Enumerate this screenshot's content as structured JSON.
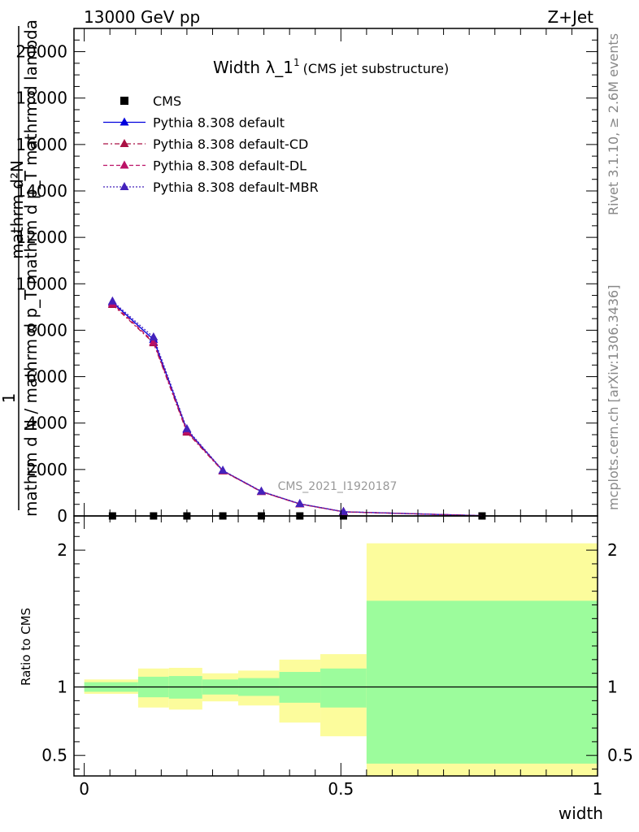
{
  "header": {
    "left": "13000 GeV pp",
    "right": "Z+Jet"
  },
  "side_texts": {
    "rivet": "Rivet 3.1.10, ≥ 2.6M events",
    "mcplots": "mcplots.cern.ch [arXiv:1306.3436]"
  },
  "watermark": "CMS_2021_I1920187",
  "colors": {
    "cms": "#000000",
    "default": "#0000dd",
    "cd": "#aa1144",
    "dl": "#bb1166",
    "mbr": "#4422bb",
    "band_inner": "#9cfc9c",
    "band_outer": "#fcfc9c"
  },
  "chart_data": [
    {
      "type": "line",
      "title": "Width λ_1",
      "title_sup": "1",
      "subtitle": "(CMS jet substructure)",
      "ylabel_top": "mathrm d²N",
      "ylabel_numer": "1",
      "ylabel_denom": "mathrm d N / mathrm d p_T mathrm d p_T mathrm d lambda",
      "xlim": [
        -0.02,
        1.0
      ],
      "ylim": [
        0,
        21000
      ],
      "y_ticks": [
        0,
        2000,
        4000,
        6000,
        8000,
        10000,
        12000,
        14000,
        16000,
        18000,
        20000
      ],
      "y_tick_labels": [
        "0",
        "2000",
        "4000",
        "6000",
        "8000",
        "10000",
        "12000",
        "14000",
        "16000",
        "18000",
        "20000"
      ],
      "x_bin_edges": [
        0.0,
        0.105,
        0.165,
        0.23,
        0.3,
        0.38,
        0.46,
        0.55,
        1.0
      ],
      "x": [
        0.055,
        0.135,
        0.2,
        0.27,
        0.345,
        0.42,
        0.505,
        0.775
      ],
      "series": [
        {
          "name": "CMS",
          "style": "square",
          "values": [
            0,
            0,
            0,
            0,
            0,
            0,
            0,
            0
          ]
        },
        {
          "name": "Pythia 8.308 default",
          "style": "solid",
          "values": [
            9200,
            7600,
            3700,
            1950,
            1050,
            520,
            180,
            10
          ]
        },
        {
          "name": "Pythia 8.308 default-CD",
          "style": "dashdot",
          "values": [
            9100,
            7450,
            3600,
            1930,
            1040,
            510,
            175,
            10
          ]
        },
        {
          "name": "Pythia 8.308 default-DL",
          "style": "dashed",
          "values": [
            9150,
            7500,
            3650,
            1940,
            1045,
            515,
            178,
            10
          ]
        },
        {
          "name": "Pythia 8.308 default-MBR",
          "style": "dotted",
          "values": [
            9250,
            7700,
            3750,
            1960,
            1060,
            525,
            182,
            10
          ]
        }
      ]
    },
    {
      "type": "area",
      "ylabel": "Ratio to CMS",
      "xlabel": "width",
      "xlim": [
        -0.02,
        1.0
      ],
      "ylim": [
        0.35,
        2.25
      ],
      "x_ticks": [
        0,
        0.5,
        1
      ],
      "x_tick_labels": [
        "0",
        "0.5",
        "1"
      ],
      "y_ticks": [
        0.5,
        1,
        2
      ],
      "y_tick_labels": [
        "0.5",
        "1",
        "2"
      ],
      "reference": 1,
      "bin_edges": [
        0.0,
        0.105,
        0.165,
        0.23,
        0.3,
        0.38,
        0.46,
        0.55,
        1.0
      ],
      "inner_band": [
        [
          0.965,
          1.035
        ],
        [
          0.925,
          1.075
        ],
        [
          0.915,
          1.08
        ],
        [
          0.945,
          1.055
        ],
        [
          0.935,
          1.065
        ],
        [
          0.885,
          1.11
        ],
        [
          0.85,
          1.135
        ],
        [
          0.44,
          1.63
        ]
      ],
      "outer_band": [
        [
          0.95,
          1.055
        ],
        [
          0.85,
          1.135
        ],
        [
          0.835,
          1.14
        ],
        [
          0.895,
          1.1
        ],
        [
          0.865,
          1.12
        ],
        [
          0.74,
          1.2
        ],
        [
          0.64,
          1.24
        ],
        [
          0.35,
          2.05
        ]
      ]
    }
  ]
}
